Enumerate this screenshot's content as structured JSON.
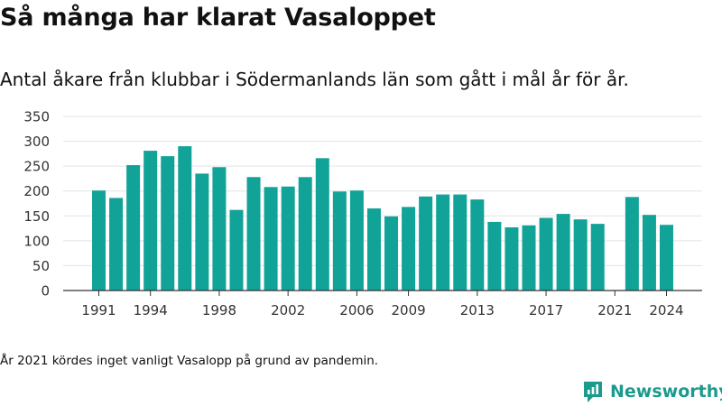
{
  "title": "Så många har klarat Vasaloppet",
  "subtitle": "Antal åkare från klubbar i Södermanlands län som gått i mål år för år.",
  "note": "År 2021 kördes inget vanligt Vasalopp på grund av pandemin.",
  "brand": {
    "name": "Newsworthy",
    "icon": "newsworthy-logo-icon",
    "color": "#1b9a8e"
  },
  "chart_data": {
    "type": "bar",
    "color": "#12a398",
    "ylim": [
      0,
      350
    ],
    "yticks": [
      0,
      50,
      100,
      150,
      200,
      250,
      300,
      350
    ],
    "xticks": [
      "1991",
      "1994",
      "1998",
      "2002",
      "2006",
      "2009",
      "2013",
      "2017",
      "2021",
      "2024"
    ],
    "categories": [
      "1991",
      "1992",
      "1993",
      "1994",
      "1995",
      "1996",
      "1997",
      "1998",
      "1999",
      "2000",
      "2001",
      "2002",
      "2003",
      "2004",
      "2005",
      "2006",
      "2007",
      "2008",
      "2009",
      "2010",
      "2011",
      "2012",
      "2013",
      "2014",
      "2015",
      "2016",
      "2017",
      "2018",
      "2019",
      "2020",
      "2021",
      "2022",
      "2023",
      "2024"
    ],
    "values": [
      201,
      186,
      252,
      281,
      270,
      290,
      235,
      248,
      162,
      228,
      208,
      209,
      228,
      266,
      199,
      201,
      165,
      149,
      168,
      189,
      193,
      193,
      183,
      138,
      127,
      131,
      146,
      154,
      143,
      134,
      0,
      188,
      152,
      132
    ],
    "grid": true
  }
}
